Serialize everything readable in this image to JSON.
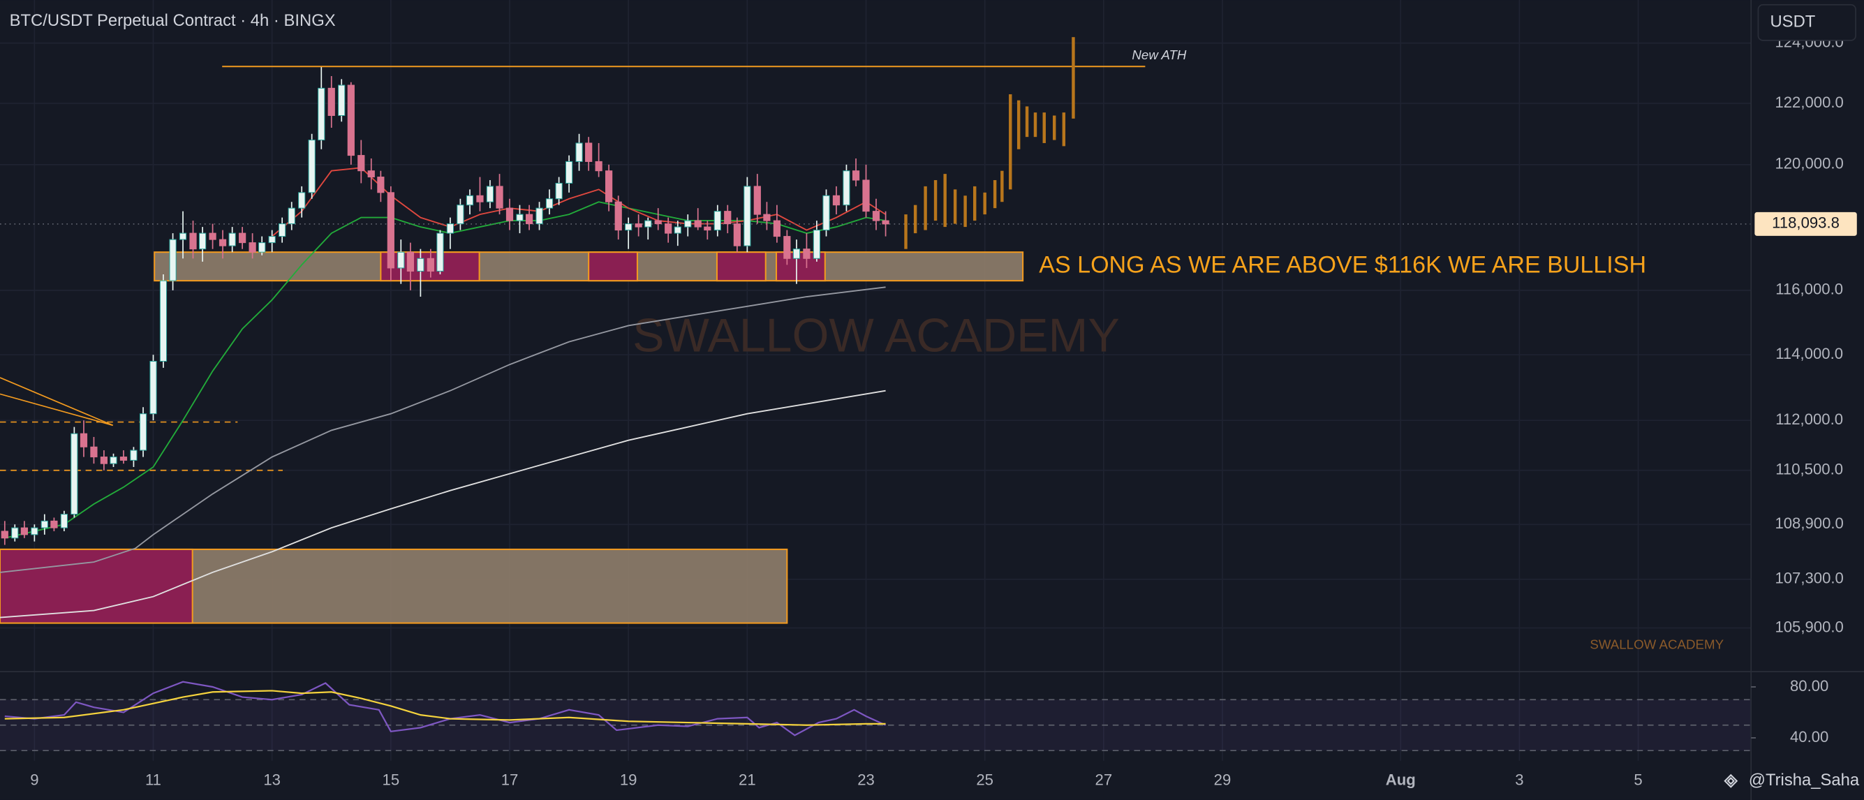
{
  "chart_data": {
    "type": "candlestick",
    "title": "BTC/USDT Perpetual Contract · 4h · BINGX",
    "currency": "USDT",
    "author": "@Trisha_Saha",
    "watermark": "SWALLOW ACADEMY",
    "watermark_small": "SWALLOW ACADEMY",
    "annotation": "AS LONG AS WE ARE ABOVE $116K WE ARE BULLISH",
    "ath_label": "New ATH",
    "log_scale": true,
    "grid": true,
    "ylim": [
      104660,
      125450
    ],
    "yticks": [
      {
        "value": 124000,
        "label": "124,000.0"
      },
      {
        "value": 122000,
        "label": "122,000.0"
      },
      {
        "value": 120000,
        "label": "120,000.0"
      },
      {
        "value": 116000,
        "label": "116,000.0"
      },
      {
        "value": 114000,
        "label": "114,000.0"
      },
      {
        "value": 112000,
        "label": "112,000.0"
      },
      {
        "value": 110500,
        "label": "110,500.0"
      },
      {
        "value": 108900,
        "label": "108,900.0"
      },
      {
        "value": 107300,
        "label": "107,300.0"
      },
      {
        "value": 105900,
        "label": "105,900.0"
      }
    ],
    "xlim": [
      8.42,
      37.9
    ],
    "xticks": [
      9,
      11,
      13,
      15,
      17,
      19,
      21,
      23,
      25,
      27,
      29,
      {
        "value": 32,
        "label": "Aug"
      },
      {
        "value": 34,
        "label": "3"
      },
      {
        "value": 36,
        "label": "5"
      }
    ],
    "last_price": {
      "value": 118093.8,
      "label": "118,093.8"
    },
    "up_color": "#e8f5f2",
    "down_color": "#d9738f",
    "ohlc": [
      [
        8.5,
        108700,
        109000,
        108300,
        108500
      ],
      [
        8.67,
        108500,
        108900,
        108400,
        108800
      ],
      [
        8.83,
        108800,
        109000,
        108500,
        108600
      ],
      [
        9.0,
        108600,
        108900,
        108400,
        108800
      ],
      [
        9.17,
        108800,
        109200,
        108600,
        109000
      ],
      [
        9.33,
        109000,
        109100,
        108700,
        108800
      ],
      [
        9.5,
        108800,
        109300,
        108700,
        109200
      ],
      [
        9.67,
        109200,
        111800,
        109100,
        111600
      ],
      [
        9.83,
        111600,
        112000,
        110900,
        111200
      ],
      [
        10.0,
        111200,
        111500,
        110700,
        110900
      ],
      [
        10.17,
        110900,
        111100,
        110500,
        110700
      ],
      [
        10.33,
        110700,
        111000,
        110600,
        110900
      ],
      [
        10.5,
        110900,
        111100,
        110700,
        110800
      ],
      [
        10.67,
        110800,
        111200,
        110600,
        111100
      ],
      [
        10.83,
        111100,
        112400,
        110900,
        112200
      ],
      [
        11.0,
        112200,
        114000,
        112000,
        113800
      ],
      [
        11.17,
        113800,
        116500,
        113600,
        116300
      ],
      [
        11.33,
        116300,
        117800,
        116000,
        117600
      ],
      [
        11.5,
        117600,
        118500,
        117000,
        117800
      ],
      [
        11.67,
        117800,
        118200,
        117000,
        117300
      ],
      [
        11.83,
        117300,
        118000,
        116900,
        117800
      ],
      [
        12.0,
        117800,
        118100,
        117300,
        117600
      ],
      [
        12.17,
        117600,
        117900,
        117000,
        117400
      ],
      [
        12.33,
        117400,
        118000,
        117200,
        117800
      ],
      [
        12.5,
        117800,
        118000,
        117300,
        117500
      ],
      [
        12.67,
        117500,
        117800,
        117000,
        117200
      ],
      [
        12.83,
        117200,
        117700,
        117100,
        117500
      ],
      [
        13.0,
        117500,
        117900,
        117200,
        117700
      ],
      [
        13.17,
        117700,
        118300,
        117500,
        118100
      ],
      [
        13.33,
        118100,
        118800,
        117900,
        118600
      ],
      [
        13.5,
        118600,
        119300,
        118300,
        119100
      ],
      [
        13.67,
        119100,
        121000,
        118900,
        120800
      ],
      [
        13.83,
        120800,
        123200,
        120500,
        122500
      ],
      [
        14.0,
        122500,
        122900,
        121200,
        121600
      ],
      [
        14.17,
        121600,
        122800,
        121400,
        122600
      ],
      [
        14.33,
        122600,
        122700,
        120000,
        120300
      ],
      [
        14.5,
        120300,
        120800,
        119400,
        119800
      ],
      [
        14.67,
        119800,
        120200,
        119200,
        119600
      ],
      [
        14.83,
        119600,
        119800,
        118800,
        119100
      ],
      [
        15.0,
        119100,
        119300,
        116300,
        116700
      ],
      [
        15.17,
        116700,
        117600,
        116200,
        117200
      ],
      [
        15.33,
        117200,
        117500,
        116000,
        116600
      ],
      [
        15.5,
        116600,
        117300,
        115800,
        117000
      ],
      [
        15.67,
        117000,
        117300,
        116400,
        116600
      ],
      [
        15.83,
        116600,
        117900,
        116500,
        117800
      ],
      [
        16.0,
        117800,
        118300,
        117300,
        118100
      ],
      [
        16.17,
        118100,
        118900,
        117900,
        118700
      ],
      [
        16.33,
        118700,
        119200,
        118400,
        119000
      ],
      [
        16.5,
        119000,
        119600,
        118500,
        118800
      ],
      [
        16.67,
        118800,
        119500,
        118600,
        119300
      ],
      [
        16.83,
        119300,
        119700,
        118400,
        118600
      ],
      [
        17.0,
        118600,
        118900,
        117900,
        118200
      ],
      [
        17.17,
        118200,
        118700,
        117800,
        118400
      ],
      [
        17.33,
        118400,
        118700,
        117900,
        118100
      ],
      [
        17.5,
        118100,
        118800,
        117900,
        118600
      ],
      [
        17.67,
        118600,
        119200,
        118400,
        118900
      ],
      [
        17.83,
        118900,
        119600,
        118700,
        119400
      ],
      [
        18.0,
        119400,
        120300,
        119100,
        120100
      ],
      [
        18.17,
        120100,
        121000,
        119800,
        120700
      ],
      [
        18.33,
        120700,
        120900,
        119800,
        120100
      ],
      [
        18.5,
        120100,
        120700,
        119600,
        119800
      ],
      [
        18.67,
        119800,
        120000,
        118500,
        118800
      ],
      [
        18.83,
        118800,
        119000,
        117600,
        117900
      ],
      [
        19.0,
        117900,
        118300,
        117300,
        118100
      ],
      [
        19.17,
        118100,
        118400,
        117700,
        118000
      ],
      [
        19.33,
        118000,
        118300,
        117600,
        118200
      ],
      [
        19.5,
        118200,
        118600,
        117900,
        118100
      ],
      [
        19.67,
        118100,
        118300,
        117500,
        117800
      ],
      [
        19.83,
        117800,
        118200,
        117400,
        118000
      ],
      [
        20.0,
        118000,
        118400,
        117700,
        118200
      ],
      [
        20.17,
        118200,
        118600,
        117900,
        118000
      ],
      [
        20.33,
        118000,
        118200,
        117600,
        117900
      ],
      [
        20.5,
        117900,
        118700,
        117700,
        118500
      ],
      [
        20.67,
        118500,
        118700,
        117800,
        118100
      ],
      [
        20.83,
        118100,
        118300,
        117200,
        117400
      ],
      [
        21.0,
        117400,
        119600,
        117200,
        119300
      ],
      [
        21.17,
        119300,
        119700,
        118100,
        118400
      ],
      [
        21.33,
        118400,
        118800,
        117900,
        118200
      ],
      [
        21.5,
        118200,
        118700,
        117500,
        117700
      ],
      [
        21.67,
        117700,
        117900,
        116800,
        117000
      ],
      [
        21.83,
        117000,
        117600,
        116200,
        117300
      ],
      [
        22.0,
        117300,
        117800,
        116700,
        117000
      ],
      [
        22.17,
        117000,
        118200,
        116900,
        117900
      ],
      [
        22.33,
        117900,
        119200,
        117700,
        119000
      ],
      [
        22.5,
        119000,
        119300,
        118400,
        118700
      ],
      [
        22.67,
        118700,
        120000,
        118500,
        119800
      ],
      [
        22.83,
        119800,
        120200,
        119300,
        119500
      ],
      [
        23.0,
        119500,
        120000,
        118300,
        118500
      ],
      [
        23.17,
        118500,
        118900,
        117900,
        118200
      ],
      [
        23.33,
        118200,
        118500,
        117700,
        118093.8
      ]
    ],
    "projection": {
      "color": "#b8761c",
      "bars": [
        [
          23.67,
          117300,
          118400
        ],
        [
          23.83,
          117800,
          118700
        ],
        [
          24.0,
          117900,
          119300
        ],
        [
          24.17,
          118200,
          119500
        ],
        [
          24.33,
          118000,
          119700
        ],
        [
          24.5,
          118100,
          119200
        ],
        [
          24.67,
          118000,
          119000
        ],
        [
          24.83,
          118200,
          119300
        ],
        [
          25.0,
          118400,
          119100
        ],
        [
          25.17,
          118600,
          119500
        ],
        [
          25.29,
          118800,
          119800
        ],
        [
          25.43,
          119200,
          122300
        ],
        [
          25.57,
          120500,
          122100
        ],
        [
          25.71,
          120900,
          121900
        ],
        [
          25.85,
          120900,
          121700
        ],
        [
          26.0,
          120700,
          121700
        ],
        [
          26.17,
          120800,
          121600
        ],
        [
          26.33,
          120600,
          121700
        ],
        [
          26.49,
          121500,
          124200
        ]
      ]
    },
    "lines": [
      {
        "color": "#e0e0e0",
        "x": [
          8.42,
          10,
          11,
          12,
          13,
          14,
          15,
          16,
          17,
          18,
          19,
          20,
          21,
          22,
          23.33
        ],
        "values": [
          106200,
          106400,
          106800,
          107500,
          108100,
          108800,
          109360,
          109900,
          110400,
          110900,
          111400,
          111800,
          112200,
          112500,
          112900
        ]
      },
      {
        "color": "#9598a1",
        "x": [
          8.42,
          10,
          10.7,
          11,
          12,
          13,
          14,
          15,
          16,
          17,
          18,
          19,
          20,
          21,
          22,
          23.33
        ],
        "values": [
          107500,
          107800,
          108200,
          108600,
          109800,
          110900,
          111700,
          112200,
          112900,
          113700,
          114400,
          114900,
          115200,
          115500,
          115800,
          116100
        ]
      },
      {
        "color": "#22ab3a",
        "x": [
          8.5,
          9.5,
          10,
          10.5,
          11,
          11.5,
          12,
          12.5,
          13,
          13.5,
          14,
          14.5,
          15,
          15.5,
          16,
          16.5,
          17,
          17.5,
          18,
          18.5,
          19,
          19.5,
          20,
          20.5,
          21,
          21.5,
          22,
          22.5,
          23,
          23.33
        ],
        "values": [
          108500,
          108900,
          109500,
          110000,
          110600,
          112000,
          113500,
          114800,
          115700,
          116800,
          117800,
          118300,
          118300,
          118000,
          117800,
          118000,
          118200,
          118200,
          118400,
          118800,
          118600,
          118400,
          118200,
          118200,
          118200,
          118100,
          117800,
          118000,
          118300,
          118200
        ]
      },
      {
        "color": "#e0483f",
        "x": [
          13,
          13.5,
          14,
          14.5,
          15,
          15.5,
          16,
          16.5,
          17,
          17.5,
          18,
          18.5,
          19,
          19.5,
          20,
          20.5,
          21,
          21.5,
          22,
          22.5,
          23,
          23.33
        ],
        "values": [
          117700,
          118500,
          119800,
          119900,
          119000,
          118300,
          118000,
          118400,
          118600,
          118500,
          118900,
          119200,
          118600,
          118200,
          118100,
          118100,
          118200,
          118400,
          117900,
          118300,
          118800,
          118400
        ]
      }
    ],
    "zones": [
      {
        "fill": "#8f7e6c",
        "stroke": "#f29a1f",
        "x": [
          11.02,
          25.64
        ],
        "y": [
          116300,
          117200
        ]
      },
      {
        "fill": "#8b1650",
        "stroke": "#f29a1f",
        "x": [
          14.83,
          16.49
        ],
        "y": [
          116300,
          117200
        ]
      },
      {
        "fill": "#8b1650",
        "stroke": "#f29a1f",
        "x": [
          18.33,
          19.15
        ],
        "y": [
          116300,
          117200
        ]
      },
      {
        "fill": "#8b1650",
        "stroke": "#f29a1f",
        "x": [
          20.49,
          21.31
        ],
        "y": [
          116300,
          117200
        ]
      },
      {
        "fill": "#8b1650",
        "stroke": "#f29a1f",
        "x": [
          21.49,
          22.31
        ],
        "y": [
          116300,
          117200
        ]
      },
      {
        "fill": "#8f7e6c",
        "stroke": "#f29a1f",
        "x": [
          8.42,
          21.67
        ],
        "y": [
          106040,
          108170
        ]
      },
      {
        "fill": "#8b1650",
        "stroke": "#f29a1f",
        "x": [
          8.42,
          11.66
        ],
        "y": [
          106040,
          108170
        ]
      }
    ],
    "ath_line": {
      "color": "#f29a1f",
      "value": 123220,
      "x": [
        12.16,
        27.7
      ]
    },
    "dashed_levels": [
      {
        "value": 111950,
        "x": [
          8.42,
          12.42
        ]
      },
      {
        "value": 110500,
        "x": [
          8.42,
          13.18
        ]
      }
    ],
    "trendlines": [
      {
        "x": [
          8.42,
          10.32
        ],
        "values": [
          113300,
          111850
        ]
      },
      {
        "x": [
          8.42,
          10.32
        ],
        "values": [
          112800,
          111850
        ]
      }
    ],
    "rsi": {
      "ylim": [
        22,
        92
      ],
      "yticks": [
        {
          "value": 80,
          "label": "80.00"
        },
        {
          "value": 40,
          "label": "40.00"
        }
      ],
      "levels": [
        70,
        50,
        30
      ],
      "lines": [
        {
          "color": "#7e57c2",
          "x": [
            8.5,
            9,
            9.5,
            9.7,
            10,
            10.5,
            11,
            11.5,
            12,
            12.5,
            13,
            13.5,
            13.9,
            14.3,
            14.8,
            15,
            15.5,
            16,
            16.5,
            17,
            17.5,
            18,
            18.5,
            18.8,
            19.5,
            20,
            20.5,
            21,
            21.2,
            21.5,
            21.8,
            22.2,
            22.5,
            22.8,
            23,
            23.33
          ],
          "values": [
            57,
            55,
            58,
            68,
            64,
            60,
            75,
            84,
            80,
            72,
            70,
            74,
            83,
            66,
            62,
            45,
            48,
            55,
            58,
            52,
            55,
            62,
            58,
            46,
            50,
            49,
            55,
            56,
            48,
            52,
            42,
            52,
            55,
            62,
            57,
            50
          ]
        },
        {
          "color": "#f5d33d",
          "x": [
            8.5,
            9.5,
            10.5,
            11.5,
            12,
            13,
            13.5,
            14,
            14.5,
            15,
            15.5,
            16,
            17,
            18,
            19,
            20,
            21,
            22,
            23,
            23.33
          ],
          "values": [
            55,
            56,
            62,
            72,
            76,
            77,
            75,
            76,
            71,
            65,
            58,
            55,
            54,
            56,
            53,
            52,
            51,
            50,
            51,
            51
          ]
        }
      ]
    }
  }
}
